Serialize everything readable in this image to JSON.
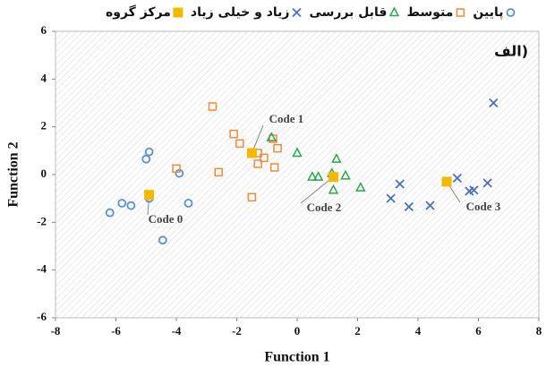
{
  "chart_data": {
    "type": "scatter",
    "panel_label": "الف)",
    "xlabel": "Function 1",
    "ylabel": "Function 2",
    "xlim": [
      -8,
      8
    ],
    "xticks": [
      -8,
      -6,
      -4,
      -2,
      0,
      2,
      4,
      6,
      8
    ],
    "ylim": [
      -6,
      6
    ],
    "yticks": [
      -6,
      -4,
      -2,
      0,
      2,
      4,
      6
    ],
    "series": [
      {
        "name": "پایین",
        "color": "#5b8fd0",
        "marker": "circle",
        "x": [
          -6.2,
          -5.8,
          -5.5,
          -5.0,
          -4.9,
          -4.9,
          -4.45,
          -3.9,
          -3.6
        ],
        "values": [
          -1.6,
          -1.2,
          -1.3,
          0.65,
          0.95,
          -1.0,
          -2.75,
          0.05,
          -1.2
        ]
      },
      {
        "name": "متوسط",
        "color": "#f08a3c",
        "marker": "square",
        "x": [
          -4.0,
          -2.8,
          -2.6,
          -2.1,
          -1.9,
          -1.5,
          -1.3,
          -1.3,
          -1.1,
          -0.8,
          -0.75,
          -0.65
        ],
        "values": [
          0.25,
          2.85,
          0.1,
          1.7,
          1.3,
          -0.95,
          0.9,
          0.45,
          0.7,
          1.5,
          0.3,
          1.1
        ]
      },
      {
        "name": "قابل بررسی",
        "color": "#2aa84a",
        "marker": "triangle",
        "x": [
          -0.85,
          0.0,
          0.5,
          0.7,
          1.15,
          1.3,
          1.6,
          1.2,
          2.1
        ],
        "values": [
          1.55,
          0.9,
          -0.1,
          -0.1,
          0.05,
          0.65,
          -0.05,
          -0.65,
          -0.55
        ]
      },
      {
        "name": "زیاد و خیلی زیاد",
        "color": "#4a6fc0",
        "marker": "x",
        "x": [
          3.1,
          3.4,
          3.7,
          4.4,
          5.3,
          5.7,
          5.85,
          6.3,
          6.5
        ],
        "values": [
          -1.0,
          -0.4,
          -1.35,
          -1.3,
          -0.15,
          -0.7,
          -0.65,
          -0.35,
          3.0
        ]
      },
      {
        "name": "مرکز گروه",
        "color": "#f5b800",
        "marker": "filled-square",
        "x": [
          -4.9,
          -1.5,
          1.2,
          4.95
        ],
        "values": [
          -0.85,
          0.9,
          -0.1,
          -0.3
        ]
      }
    ],
    "annotations": [
      "Code 0",
      "Code 1",
      "Code 2",
      "Code 3"
    ]
  }
}
